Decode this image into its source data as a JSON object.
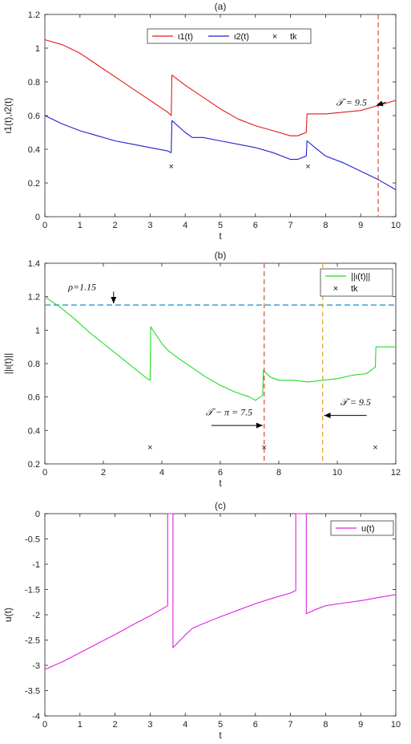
{
  "figure": {
    "background": "#ffffff",
    "axis_color": "#222222"
  },
  "chart_data": [
    {
      "type": "line",
      "title": "(a)",
      "xlabel": "t",
      "ylabel": "ι1(t),ι2(t)",
      "xlim": [
        0,
        10
      ],
      "ylim": [
        0,
        1.2
      ],
      "xticks": [
        0,
        1,
        2,
        3,
        4,
        5,
        6,
        7,
        8,
        9,
        10
      ],
      "yticks": [
        0,
        0.2,
        0.4,
        0.6,
        0.8,
        1,
        1.2
      ],
      "xtick_labels": [
        "0",
        "1",
        "2",
        "3",
        "4",
        "5",
        "6",
        "7",
        "8",
        "9",
        "10"
      ],
      "ytick_labels": [
        "0",
        "0.2",
        "0.4",
        "0.6",
        "0.8",
        "1",
        "1.2"
      ],
      "legend_position": "top-center",
      "series": [
        {
          "name": "ι1(t)",
          "color": "#e31a1c",
          "x": [
            0,
            0.5,
            1,
            1.5,
            2,
            2.5,
            3,
            3.5,
            3.6,
            3.62,
            4,
            4.5,
            5,
            5.5,
            6,
            6.5,
            7,
            7.2,
            7.45,
            7.47,
            8,
            8.5,
            9,
            9.5,
            10
          ],
          "y": [
            1.05,
            1.02,
            0.97,
            0.9,
            0.83,
            0.76,
            0.69,
            0.62,
            0.6,
            0.84,
            0.78,
            0.71,
            0.64,
            0.58,
            0.54,
            0.51,
            0.48,
            0.48,
            0.5,
            0.61,
            0.61,
            0.62,
            0.63,
            0.66,
            0.69
          ]
        },
        {
          "name": "ι2(t)",
          "color": "#2020d0",
          "x": [
            0,
            0.5,
            1,
            1.5,
            2,
            2.5,
            3,
            3.5,
            3.6,
            3.62,
            4,
            4.2,
            4.5,
            5,
            5.5,
            6,
            6.5,
            7,
            7.2,
            7.45,
            7.47,
            7.7,
            8,
            8.5,
            9,
            9.5,
            10
          ],
          "y": [
            0.6,
            0.55,
            0.51,
            0.48,
            0.45,
            0.43,
            0.41,
            0.39,
            0.38,
            0.57,
            0.5,
            0.47,
            0.47,
            0.45,
            0.43,
            0.41,
            0.38,
            0.34,
            0.34,
            0.36,
            0.45,
            0.41,
            0.36,
            0.32,
            0.27,
            0.22,
            0.16
          ]
        }
      ],
      "markers": {
        "name": "tk",
        "symbol": "×",
        "x": [
          3.6,
          7.5
        ],
        "y": [
          0.3,
          0.3
        ]
      },
      "vlines": [
        {
          "x": 9.5,
          "color": "#d1502a"
        }
      ],
      "hlines": [],
      "annotations": [
        {
          "text": "𝒯 = 9.5",
          "x": 8.3,
          "y": 0.66,
          "arrow_to_x": 9.45,
          "arrow_to_y": 0.66
        }
      ]
    },
    {
      "type": "line",
      "title": "(b)",
      "xlabel": "t",
      "ylabel": "||ι(t)||",
      "xlim": [
        0,
        12
      ],
      "ylim": [
        0.2,
        1.4
      ],
      "xticks": [
        0,
        2,
        4,
        6,
        8,
        10,
        12
      ],
      "yticks": [
        0.2,
        0.4,
        0.6,
        0.8,
        1,
        1.2,
        1.4
      ],
      "xtick_labels": [
        "0",
        "2",
        "4",
        "6",
        "8",
        "10",
        "12"
      ],
      "ytick_labels": [
        "0.2",
        "0.4",
        "0.6",
        "0.8",
        "1",
        "1.2",
        "1.4"
      ],
      "legend_position": "top-right",
      "series": [
        {
          "name": "||ι(t)||",
          "color": "#22dd22",
          "x": [
            0,
            0.5,
            1,
            1.5,
            2,
            2.5,
            3,
            3.5,
            3.6,
            3.62,
            4,
            4.2,
            4.5,
            5,
            5.5,
            6,
            6.5,
            7,
            7.2,
            7.45,
            7.47,
            7.7,
            8,
            8.5,
            9,
            9.5,
            10,
            10.5,
            11,
            11.3,
            11.32,
            12
          ],
          "y": [
            1.2,
            1.14,
            1.07,
            0.99,
            0.92,
            0.85,
            0.78,
            0.71,
            0.7,
            1.02,
            0.92,
            0.88,
            0.84,
            0.78,
            0.72,
            0.67,
            0.63,
            0.6,
            0.58,
            0.61,
            0.76,
            0.72,
            0.7,
            0.7,
            0.69,
            0.7,
            0.71,
            0.73,
            0.74,
            0.78,
            0.9,
            0.9
          ]
        }
      ],
      "markers": {
        "name": "tk",
        "symbol": "×",
        "x": [
          3.6,
          7.5,
          11.3
        ],
        "y": [
          0.3,
          0.3,
          0.3
        ]
      },
      "vlines": [
        {
          "x": 7.5,
          "color": "#d1502a"
        },
        {
          "x": 9.5,
          "color": "#e8a020"
        }
      ],
      "hlines": [
        {
          "y": 1.15,
          "color": "#4aa8d8"
        }
      ],
      "annotations": [
        {
          "text": "ρ=1.15",
          "x": 0.8,
          "y": 1.24,
          "arrow_to_x": 2.35,
          "arrow_to_y": 1.16,
          "arrow_from_x": 2.35,
          "arrow_from_y": 1.23
        },
        {
          "text": "𝒯 − π = 7.5",
          "x": 5.5,
          "y": 0.49,
          "arrow_from_x": 5.7,
          "arrow_from_y": 0.43,
          "arrow_to_x": 7.45,
          "arrow_to_y": 0.43
        },
        {
          "text": "𝒯 = 9.5",
          "x": 10.1,
          "y": 0.55,
          "arrow_from_x": 11.0,
          "arrow_from_y": 0.49,
          "arrow_to_x": 9.55,
          "arrow_to_y": 0.49
        }
      ]
    },
    {
      "type": "line",
      "title": "(c)",
      "xlabel": "t",
      "ylabel": "u(t)",
      "xlim": [
        0,
        10
      ],
      "ylim": [
        -4,
        0
      ],
      "xticks": [
        0,
        1,
        2,
        3,
        4,
        5,
        6,
        7,
        8,
        9,
        10
      ],
      "yticks": [
        -4,
        -3.5,
        -3,
        -2.5,
        -2,
        -1.5,
        -1,
        -0.5,
        0
      ],
      "xtick_labels": [
        "0",
        "1",
        "2",
        "3",
        "4",
        "5",
        "6",
        "7",
        "8",
        "9",
        "10"
      ],
      "ytick_labels": [
        "-4",
        "-3.5",
        "-3",
        "-2.5",
        "-2",
        "-1.5",
        "-1",
        "-0.5",
        "0"
      ],
      "legend_position": "top-right",
      "series": [
        {
          "name": "u(t)",
          "color": "#e020e0",
          "x": [
            0,
            0.5,
            1,
            1.5,
            2,
            2.5,
            3,
            3.5,
            3.5,
            3.65,
            3.65,
            4,
            4.2,
            4.5,
            5,
            5.5,
            6,
            6.5,
            7,
            7.15,
            7.15,
            7.45,
            7.45,
            7.7,
            8,
            8.5,
            9,
            9.5,
            10
          ],
          "y": [
            -3.08,
            -2.93,
            -2.75,
            -2.57,
            -2.39,
            -2.2,
            -2.02,
            -1.82,
            0,
            0,
            -2.65,
            -2.4,
            -2.27,
            -2.18,
            -2.04,
            -1.91,
            -1.78,
            -1.67,
            -1.57,
            -1.52,
            0,
            0,
            -1.98,
            -1.9,
            -1.82,
            -1.77,
            -1.72,
            -1.66,
            -1.6
          ]
        }
      ],
      "markers": null,
      "vlines": [],
      "hlines": [],
      "annotations": []
    }
  ]
}
